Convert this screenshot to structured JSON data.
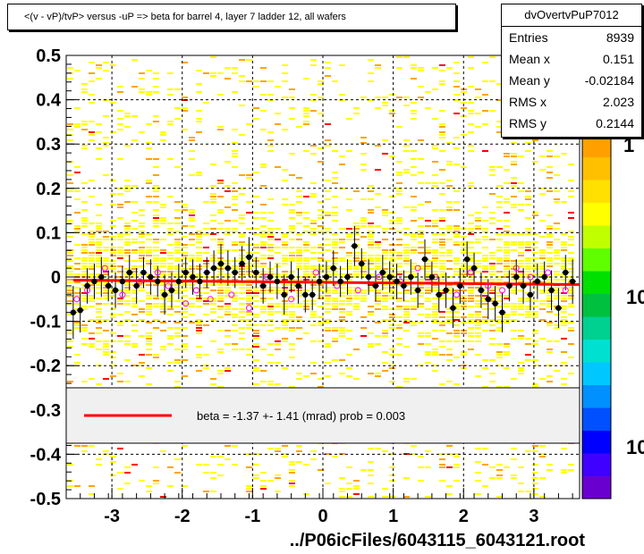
{
  "title": "<(v - vP)/tvP> versus -uP => beta for barrel 4, layer 7 ladder 12, all wafers",
  "stats": {
    "name": "dvOvertvPuP7012",
    "rows": [
      {
        "label": "Entries",
        "value": "8939"
      },
      {
        "label": "Mean x",
        "value": "0.151"
      },
      {
        "label": "Mean y",
        "value": "-0.02184"
      },
      {
        "label": "RMS x",
        "value": "2.023"
      },
      {
        "label": "RMS y",
        "value": "0.2144"
      }
    ]
  },
  "fit_legend": "beta =   -1.37 +-  1.41 (mrad) prob = 0.003",
  "footer": "../P06icFiles/6043115_6043121.root",
  "colors": {
    "fit_line": "#ff0000",
    "profile_marker": "#000000",
    "open_marker": "#ff00ff",
    "heat_low": "#ffff00",
    "heat_mid": "#ffa500",
    "heat_high": "#ff0000"
  },
  "palette_labels": [
    "1",
    "10",
    "10"
  ],
  "chart_data": {
    "type": "heatmap",
    "xlim": [
      -3.65,
      3.65
    ],
    "ylim": [
      -0.5,
      0.5
    ],
    "xticks": [
      -3,
      -2,
      -1,
      0,
      1,
      2,
      3
    ],
    "yticks": [
      0.5,
      0.4,
      0.3,
      0.2,
      0.1,
      0,
      -0.1,
      -0.2,
      -0.3,
      -0.4,
      -0.5
    ],
    "ytick_labels": [
      "0.5",
      "0.4",
      "0.3",
      "0.2",
      "0.1",
      "0",
      "-0.1",
      "-0.2",
      "-0.3",
      "-0.4",
      "-0.5"
    ],
    "grid": true,
    "fit": {
      "x": [
        -3.55,
        3.65
      ],
      "y": [
        -0.007,
        -0.017
      ]
    },
    "profile": {
      "x": [
        -3.55,
        -3.45,
        -3.35,
        -3.25,
        -3.15,
        -3.05,
        -2.95,
        -2.85,
        -2.75,
        -2.65,
        -2.55,
        -2.45,
        -2.35,
        -2.25,
        -2.15,
        -2.05,
        -1.95,
        -1.85,
        -1.75,
        -1.65,
        -1.55,
        -1.45,
        -1.35,
        -1.25,
        -1.15,
        -1.05,
        -0.95,
        -0.85,
        -0.75,
        -0.65,
        -0.55,
        -0.45,
        -0.35,
        -0.25,
        -0.15,
        -0.05,
        0.05,
        0.15,
        0.25,
        0.35,
        0.45,
        0.55,
        0.65,
        0.75,
        0.85,
        0.95,
        1.05,
        1.15,
        1.25,
        1.35,
        1.45,
        1.55,
        1.65,
        1.75,
        1.85,
        1.95,
        2.05,
        2.15,
        2.25,
        2.35,
        2.45,
        2.55,
        2.65,
        2.75,
        2.85,
        2.95,
        3.05,
        3.15,
        3.25,
        3.35,
        3.45,
        3.55
      ],
      "y": [
        -0.08,
        -0.075,
        -0.02,
        -0.01,
        0.0,
        -0.02,
        -0.03,
        -0.01,
        0.01,
        -0.02,
        0.01,
        0.0,
        -0.01,
        -0.04,
        -0.03,
        -0.01,
        0.01,
        0.0,
        -0.01,
        0.01,
        0.02,
        0.03,
        0.02,
        0.01,
        0.03,
        0.045,
        0.01,
        -0.02,
        0.0,
        -0.01,
        -0.04,
        0.0,
        -0.02,
        -0.04,
        -0.04,
        -0.01,
        0.0,
        0.02,
        -0.01,
        0.0,
        0.07,
        0.03,
        0.0,
        -0.02,
        0.01,
        0.0,
        -0.01,
        -0.02,
        0.0,
        -0.03,
        0.04,
        0.0,
        -0.04,
        -0.03,
        -0.07,
        -0.02,
        0.04,
        0.02,
        -0.03,
        -0.05,
        -0.06,
        -0.08,
        -0.02,
        0.0,
        -0.02,
        -0.04,
        -0.01,
        0.0,
        -0.03,
        -0.07,
        0.01,
        -0.01
      ],
      "err": [
        0.06,
        0.05,
        0.04,
        0.04,
        0.045,
        0.035,
        0.04,
        0.035,
        0.04,
        0.04,
        0.035,
        0.04,
        0.035,
        0.045,
        0.04,
        0.04,
        0.035,
        0.04,
        0.04,
        0.035,
        0.04,
        0.045,
        0.04,
        0.035,
        0.04,
        0.045,
        0.035,
        0.04,
        0.035,
        0.04,
        0.045,
        0.035,
        0.04,
        0.04,
        0.035,
        0.04,
        0.035,
        0.04,
        0.035,
        0.04,
        0.045,
        0.035,
        0.04,
        0.035,
        0.04,
        0.035,
        0.04,
        0.035,
        0.04,
        0.04,
        0.045,
        0.035,
        0.04,
        0.04,
        0.045,
        0.04,
        0.04,
        0.035,
        0.04,
        0.045,
        0.04,
        0.045,
        0.035,
        0.04,
        0.04,
        0.035,
        0.04,
        0.035,
        0.045,
        0.045,
        0.04,
        0.05
      ]
    },
    "open_markers": {
      "x": [
        -3.5,
        -3.35,
        -3.1,
        -2.85,
        -2.6,
        -2.35,
        -2.2,
        -1.95,
        -1.8,
        -1.6,
        -1.3,
        -1.05,
        -0.8,
        -0.45,
        -0.1,
        0.2,
        0.5,
        0.8,
        1.1,
        1.35,
        1.6,
        1.9,
        2.1,
        2.35,
        2.55,
        2.75,
        2.95,
        3.2,
        3.45
      ],
      "y": [
        -0.05,
        -0.03,
        0.02,
        -0.04,
        -0.01,
        0.01,
        -0.02,
        -0.06,
        -0.03,
        -0.05,
        -0.04,
        -0.07,
        0.0,
        -0.05,
        0.01,
        -0.02,
        -0.03,
        0.0,
        -0.01,
        0.02,
        0.0,
        -0.04,
        0.01,
        -0.02,
        -0.03,
        0.02,
        0.0,
        0.01,
        -0.03
      ]
    }
  }
}
